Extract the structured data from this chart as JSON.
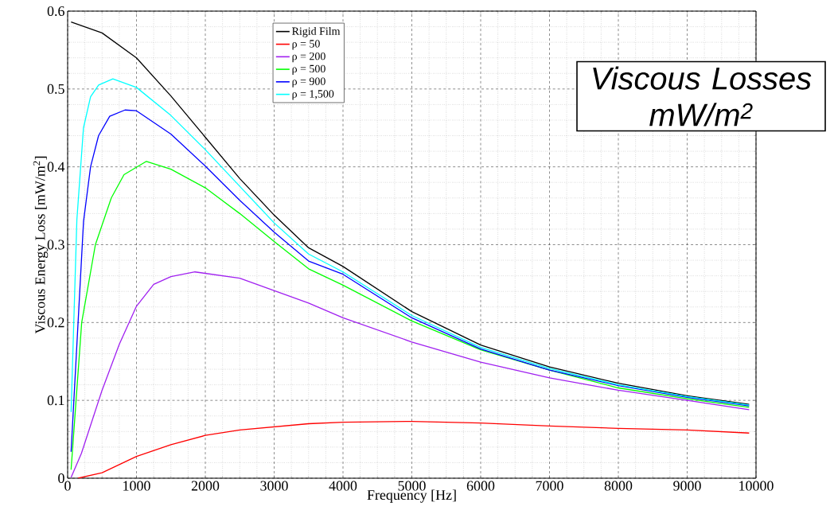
{
  "chart_data": {
    "type": "line",
    "xlabel": "Frequency [Hz]",
    "ylabel": "Viscous Energy Loss [mW/m$^{2}$]",
    "annotations": [
      "Viscous Losses mW/m$^{2}$"
    ],
    "xlim": [
      0,
      10000
    ],
    "ylim": [
      0,
      0.6
    ],
    "xticks": [
      0,
      1000,
      2000,
      3000,
      4000,
      5000,
      6000,
      7000,
      8000,
      9000,
      10000
    ],
    "yticks": [
      0,
      0.1,
      0.2,
      0.3,
      0.4,
      0.5,
      0.6
    ],
    "grid": true,
    "legend": "top",
    "marker": "none",
    "line_style": "solid",
    "series": [
      {
        "name": "Rigid Film",
        "color": "#000000",
        "x": [
          50,
          500,
          1000,
          1500,
          2000,
          2500,
          3000,
          3500,
          4000,
          5000,
          6000,
          7000,
          8000,
          9000,
          9900
        ],
        "values": [
          0.586,
          0.572,
          0.54,
          0.491,
          0.438,
          0.385,
          0.338,
          0.296,
          0.272,
          0.214,
          0.171,
          0.143,
          0.122,
          0.106,
          0.095
        ]
      },
      {
        "name": "ρ = 50",
        "color": "#ff0000",
        "x": [
          150,
          500,
          1000,
          1500,
          2000,
          2500,
          3000,
          3500,
          4000,
          5000,
          6000,
          7000,
          8000,
          9000,
          9900
        ],
        "values": [
          0,
          0.007,
          0.028,
          0.043,
          0.055,
          0.062,
          0.066,
          0.07,
          0.072,
          0.073,
          0.071,
          0.067,
          0.064,
          0.062,
          0.058
        ]
      },
      {
        "name": "ρ = 200",
        "color": "#a020f0",
        "x": [
          50,
          200,
          500,
          750,
          1000,
          1250,
          1500,
          1850,
          2500,
          3000,
          3500,
          4000,
          5000,
          6000,
          7000,
          8000,
          9000,
          9900
        ],
        "values": [
          0.001,
          0.032,
          0.113,
          0.172,
          0.221,
          0.249,
          0.259,
          0.265,
          0.257,
          0.241,
          0.225,
          0.206,
          0.175,
          0.149,
          0.129,
          0.113,
          0.1,
          0.088
        ]
      },
      {
        "name": "ρ = 500",
        "color": "#00ff00",
        "x": [
          50,
          204,
          403,
          634,
          819,
          1144,
          1500,
          2000,
          2500,
          3000,
          3500,
          4000,
          5000,
          6000,
          7000,
          8000,
          9000,
          9900
        ],
        "values": [
          0.011,
          0.2,
          0.3,
          0.36,
          0.39,
          0.407,
          0.397,
          0.373,
          0.34,
          0.304,
          0.269,
          0.248,
          0.202,
          0.165,
          0.139,
          0.116,
          0.102,
          0.091
        ]
      },
      {
        "name": "ρ = 900",
        "color": "#0000ff",
        "x": [
          50,
          231,
          333,
          449,
          611,
          833,
          1000,
          1500,
          2000,
          2500,
          3000,
          3500,
          4000,
          5000,
          6000,
          7000,
          8000,
          9000,
          9900
        ],
        "values": [
          0.034,
          0.33,
          0.4,
          0.44,
          0.465,
          0.473,
          0.472,
          0.442,
          0.401,
          0.357,
          0.316,
          0.279,
          0.262,
          0.206,
          0.166,
          0.139,
          0.119,
          0.104,
          0.093
        ]
      },
      {
        "name": "ρ = 1,500",
        "color": "#00ffff",
        "x": [
          50,
          134,
          230,
          333,
          450,
          657,
          1000,
          1500,
          2000,
          2500,
          3000,
          3500,
          4000,
          5000,
          6000,
          7000,
          8000,
          9000,
          9900
        ],
        "values": [
          0.085,
          0.332,
          0.45,
          0.49,
          0.505,
          0.513,
          0.502,
          0.466,
          0.422,
          0.375,
          0.328,
          0.288,
          0.265,
          0.209,
          0.168,
          0.141,
          0.12,
          0.105,
          0.094
        ]
      }
    ]
  }
}
